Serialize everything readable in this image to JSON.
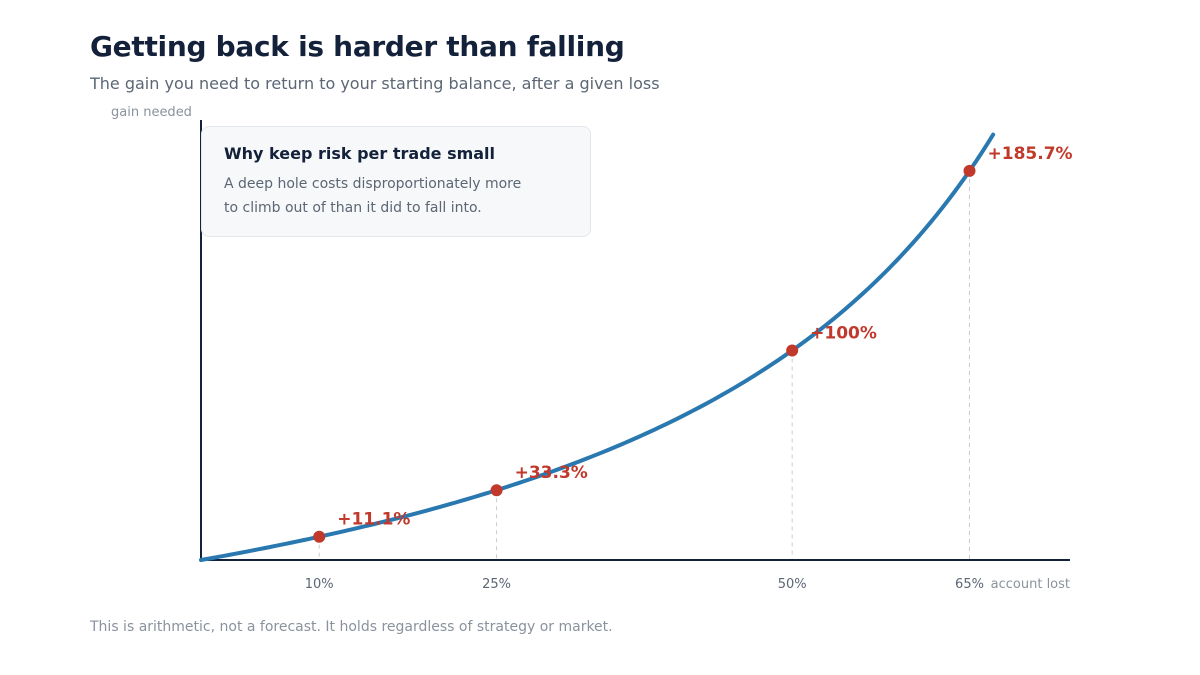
{
  "title": "Getting back is harder than falling",
  "subtitle": "The gain you need to return to your starting balance, after a given loss",
  "footnote": "This is arithmetic, not a forecast. It holds regardless of strategy or market.",
  "callout": {
    "title": "Why keep risk per trade small",
    "body": "A deep hole costs disproportionately more to climb out of than it did to fall into."
  },
  "colors": {
    "curve": "#2a78b0",
    "marker": "#c0392b",
    "axis": "#14213a",
    "guide": "#c8ccd2",
    "tick_text": "#5c6674"
  },
  "chart_data": {
    "type": "line",
    "xlabel": "account lost",
    "ylabel": "gain needed",
    "xlim": [
      0,
      0.735
    ],
    "ylim": [
      0,
      2.1
    ],
    "curve_formula": "y = x / (1 - x)",
    "curve_x_max": 0.67,
    "grid": false,
    "points": [
      {
        "x": 0.1,
        "y": 0.111,
        "x_label": "10%",
        "label": "+11.1%"
      },
      {
        "x": 0.25,
        "y": 0.333,
        "x_label": "25%",
        "label": "+33.3%"
      },
      {
        "x": 0.5,
        "y": 1.0,
        "x_label": "50%",
        "label": "+100%"
      },
      {
        "x": 0.65,
        "y": 1.857,
        "x_label": "65%",
        "label": "+185.7%"
      }
    ]
  }
}
